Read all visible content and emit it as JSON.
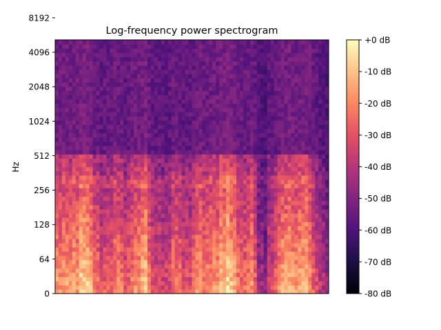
{
  "chart_data": {
    "type": "heatmap",
    "title": "Log-frequency power spectrogram",
    "xlabel": "",
    "ylabel": "Hz",
    "y_scale": "log2",
    "y_ticks": [
      {
        "value": 0,
        "label": "0"
      },
      {
        "value": 64,
        "label": "64"
      },
      {
        "value": 128,
        "label": "128"
      },
      {
        "value": 256,
        "label": "256"
      },
      {
        "value": 512,
        "label": "512"
      },
      {
        "value": 1024,
        "label": "1024"
      },
      {
        "value": 2048,
        "label": "2048"
      },
      {
        "value": 4096,
        "label": "4096"
      },
      {
        "value": 8192,
        "label": "8192"
      }
    ],
    "x_ticks": [],
    "colormap": "magma",
    "color_range_db": [
      -80,
      0
    ],
    "colorbar_ticks": [
      {
        "value": 0,
        "label": "+0 dB"
      },
      {
        "value": -10,
        "label": "-10 dB"
      },
      {
        "value": -20,
        "label": "-20 dB"
      },
      {
        "value": -30,
        "label": "-30 dB"
      },
      {
        "value": -40,
        "label": "-40 dB"
      },
      {
        "value": -50,
        "label": "-50 dB"
      },
      {
        "value": -60,
        "label": "-60 dB"
      },
      {
        "value": -70,
        "label": "-70 dB"
      },
      {
        "value": -80,
        "label": "-80 dB"
      }
    ],
    "magma_stops": [
      "#000004",
      "#1c1044",
      "#4f127b",
      "#812581",
      "#b5367a",
      "#e55064",
      "#fb8761",
      "#fec287",
      "#fcfdbf"
    ]
  }
}
